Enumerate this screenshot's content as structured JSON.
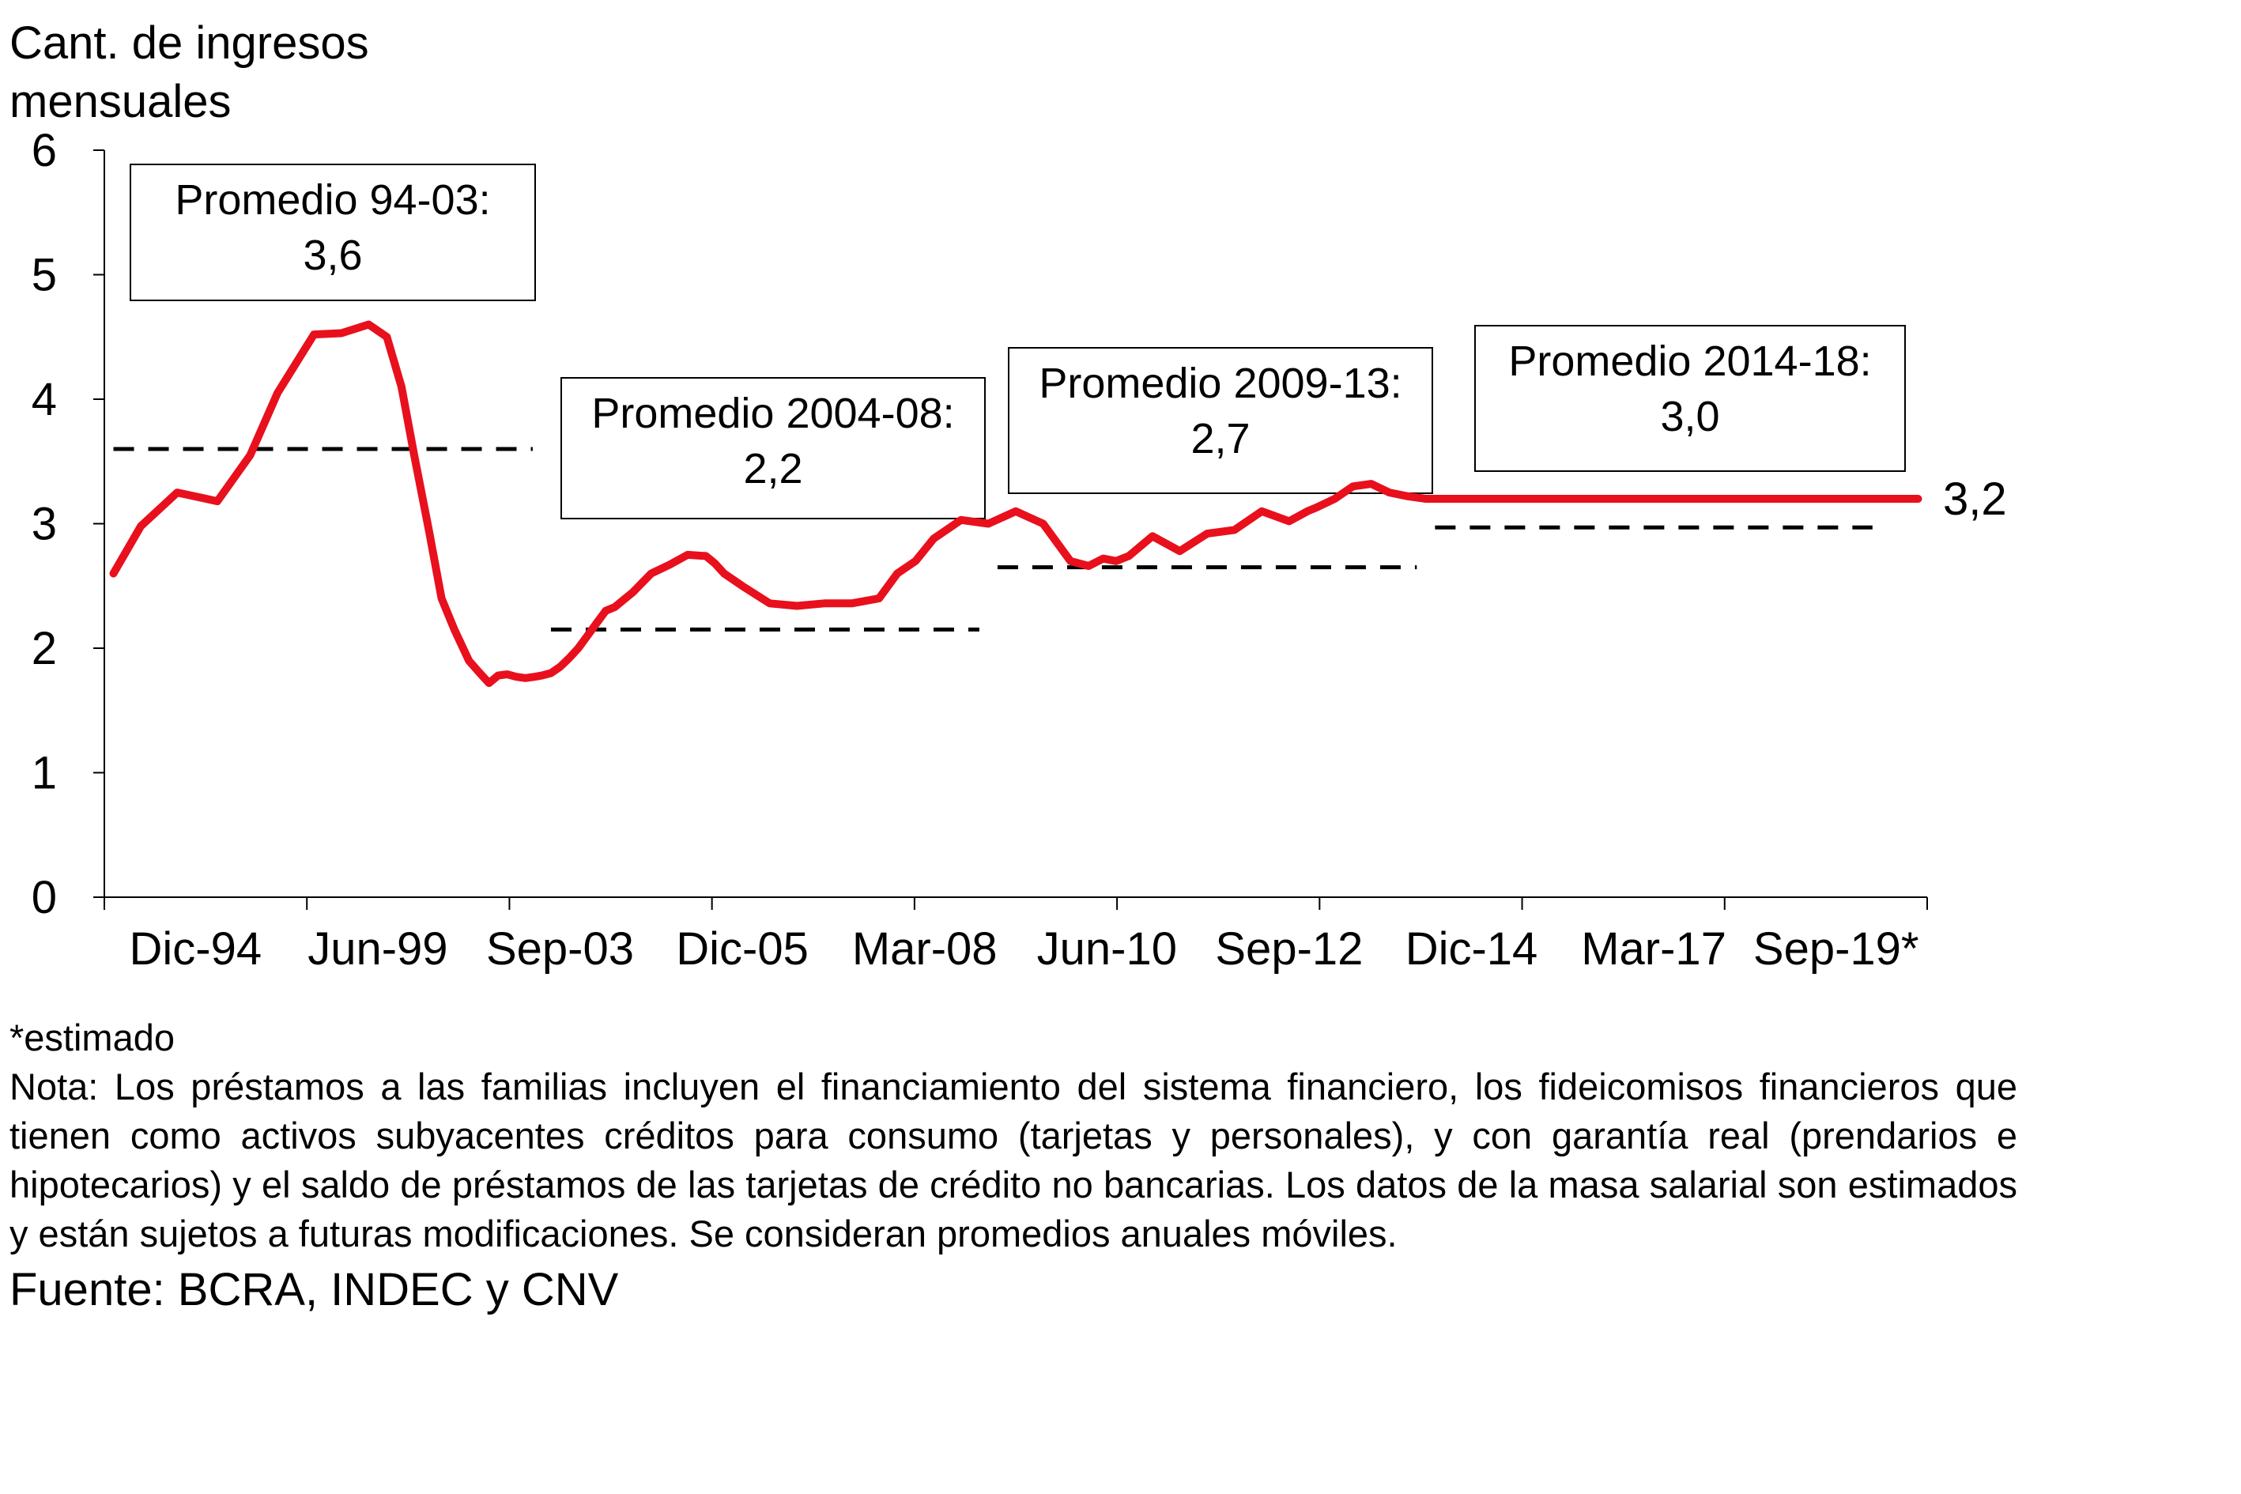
{
  "chart_data": {
    "type": "line",
    "ylabel": "Cant. de ingresos mensuales",
    "ylim": [
      0,
      6
    ],
    "yticks": [
      "0",
      "1",
      "2",
      "3",
      "4",
      "5",
      "6"
    ],
    "x_tick_labels": [
      "Dic-94",
      "Jun-99",
      "Sep-03",
      "Dic-05",
      "Mar-08",
      "Jun-10",
      "Sep-12",
      "Dic-14",
      "Mar-17",
      "Sep-19*"
    ],
    "xlim": [
      0,
      1
    ],
    "series": [
      {
        "name": "Cant. de ingresos mensuales",
        "color": "#e8101c",
        "x": [
          0.005,
          0.02,
          0.04,
          0.062,
          0.08,
          0.095,
          0.115,
          0.13,
          0.145,
          0.155,
          0.163,
          0.17,
          0.178,
          0.185,
          0.192,
          0.2,
          0.206,
          0.211,
          0.216,
          0.221,
          0.226,
          0.231,
          0.236,
          0.24,
          0.245,
          0.25,
          0.255,
          0.26,
          0.265,
          0.27,
          0.275,
          0.28,
          0.29,
          0.3,
          0.31,
          0.32,
          0.33,
          0.335,
          0.34,
          0.35,
          0.365,
          0.38,
          0.395,
          0.41,
          0.425,
          0.435,
          0.445,
          0.455,
          0.47,
          0.485,
          0.5,
          0.515,
          0.53,
          0.54,
          0.548,
          0.555,
          0.562,
          0.575,
          0.59,
          0.605,
          0.62,
          0.635,
          0.65,
          0.66,
          0.665,
          0.675,
          0.685,
          0.695,
          0.705,
          0.715,
          0.725,
          0.735,
          0.745,
          0.755,
          0.765,
          0.775,
          0.785,
          0.795,
          0.8,
          0.81,
          0.82,
          0.83,
          0.84,
          0.85,
          0.86,
          0.87,
          0.88,
          0.89,
          0.9,
          0.91,
          0.92,
          0.93,
          0.94,
          0.945,
          0.955,
          0.965,
          0.98,
          0.995
        ],
        "values": [
          2.6,
          2.98,
          3.25,
          3.18,
          3.55,
          4.05,
          4.52,
          4.53,
          4.6,
          4.5,
          4.1,
          3.55,
          2.95,
          2.4,
          2.15,
          1.9,
          1.8,
          1.72,
          1.78,
          1.79,
          1.77,
          1.76,
          1.77,
          1.78,
          1.8,
          1.85,
          1.92,
          2.0,
          2.1,
          2.2,
          2.3,
          2.33,
          2.45,
          2.6,
          2.67,
          2.75,
          2.74,
          2.68,
          2.6,
          2.5,
          2.36,
          2.34,
          2.36,
          2.36,
          2.4,
          2.6,
          2.7,
          2.88,
          3.03,
          3.0,
          3.1,
          3.0,
          2.7,
          2.66,
          2.72,
          2.7,
          2.74,
          2.9,
          2.78,
          2.92,
          2.95,
          3.1,
          3.02,
          3.1,
          3.13,
          3.2,
          3.3,
          3.32,
          3.25,
          3.22,
          3.2,
          3.2,
          3.2,
          3.2,
          3.2,
          3.2,
          3.2,
          3.2,
          3.2,
          3.2,
          3.2,
          3.2,
          3.2,
          3.2,
          3.2,
          3.2,
          3.2,
          3.2,
          3.2,
          3.2,
          3.2,
          3.2,
          3.2,
          3.2,
          3.2,
          3.2,
          3.2,
          3.2
        ]
      }
    ],
    "averages": [
      {
        "label": "Promedio 94-03:",
        "value": 3.6,
        "value_label": "3,6",
        "x_start": 0.005,
        "x_end": 0.235
      },
      {
        "label": "Promedio 2004-08:",
        "value": 2.15,
        "value_label": "2,2",
        "x_start": 0.245,
        "x_end": 0.48
      },
      {
        "label": "Promedio 2009-13:",
        "value": 2.65,
        "value_label": "2,7",
        "x_start": 0.49,
        "x_end": 0.72
      },
      {
        "label": "Promedio 2014-18:",
        "value": 2.97,
        "value_label": "3,0",
        "x_start": 0.73,
        "x_end": 0.97
      }
    ],
    "end_label": "3,2",
    "end_value": 3.2
  },
  "notes": {
    "estimado": "*estimado",
    "nota": "Nota: Los préstamos a las familias incluyen el financiamiento del sistema financiero, los fideicomisos financieros que tienen como activos subyacentes créditos para consumo (tarjetas y personales), y con garantía real (prendarios e hipotecarios) y el saldo de préstamos de las tarjetas de crédito no bancarias. Los datos de la masa salarial son estimados y están sujetos a futuras modificaciones. Se consideran promedios anuales móviles.",
    "fuente": "Fuente: BCRA, INDEC y CNV"
  }
}
